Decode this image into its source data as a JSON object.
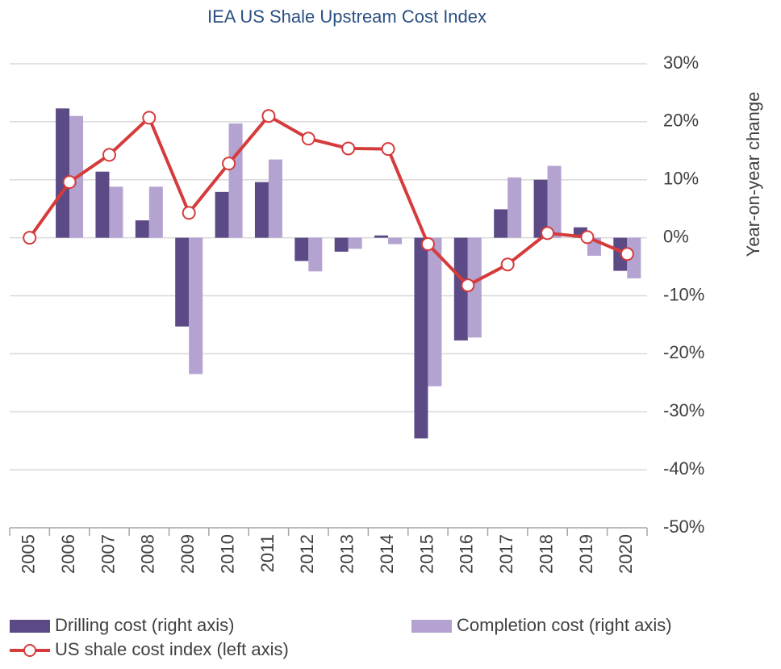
{
  "chart_data": {
    "type": "bar_line",
    "title": "IEA US Shale Upstream Cost Index",
    "y_label": "Year-on-year change",
    "categories": [
      "2005",
      "2006",
      "2007",
      "2008",
      "2009",
      "2010",
      "2011",
      "2012",
      "2013",
      "2014",
      "2015",
      "2016",
      "2017",
      "2018",
      "2019",
      "2020"
    ],
    "series": [
      {
        "name": "Drilling cost (right axis)",
        "type": "bar",
        "color": "#5c4a86",
        "values": [
          null,
          22.3,
          11.4,
          3.0,
          -15.3,
          7.9,
          9.6,
          -4.0,
          -2.4,
          0.4,
          -34.6,
          -17.7,
          4.9,
          10.0,
          1.8,
          -5.7
        ]
      },
      {
        "name": "Completion cost (right axis)",
        "type": "bar",
        "color": "#b4a2d0",
        "values": [
          null,
          21.0,
          8.8,
          8.8,
          -23.5,
          19.7,
          13.5,
          -5.8,
          -1.9,
          -1.1,
          -25.6,
          -17.2,
          10.4,
          12.4,
          -3.1,
          -7.0
        ]
      },
      {
        "name": "US shale cost index (left axis)",
        "type": "line",
        "color": "#d63b3b",
        "axis": "y2",
        "values": [
          0,
          9.6,
          14.3,
          20.7,
          4.3,
          12.8,
          21.0,
          17.1,
          15.4,
          15.3,
          -1.1,
          -8.2,
          -4.6,
          0.8,
          0.1,
          -2.8
        ]
      }
    ],
    "ylim": [
      -50,
      30
    ],
    "y2lim": [
      -50,
      30
    ],
    "yticks": [
      {
        "value": 30,
        "label": "30%"
      },
      {
        "value": 20,
        "label": "20%"
      },
      {
        "value": 10,
        "label": "10%"
      },
      {
        "value": 0,
        "label": "0%"
      },
      {
        "value": -10,
        "label": "-10%"
      },
      {
        "value": -20,
        "label": "-20%"
      },
      {
        "value": -30,
        "label": "-30%"
      },
      {
        "value": -40,
        "label": "-40%"
      },
      {
        "value": -50,
        "label": "-50%"
      }
    ],
    "grid": true
  }
}
